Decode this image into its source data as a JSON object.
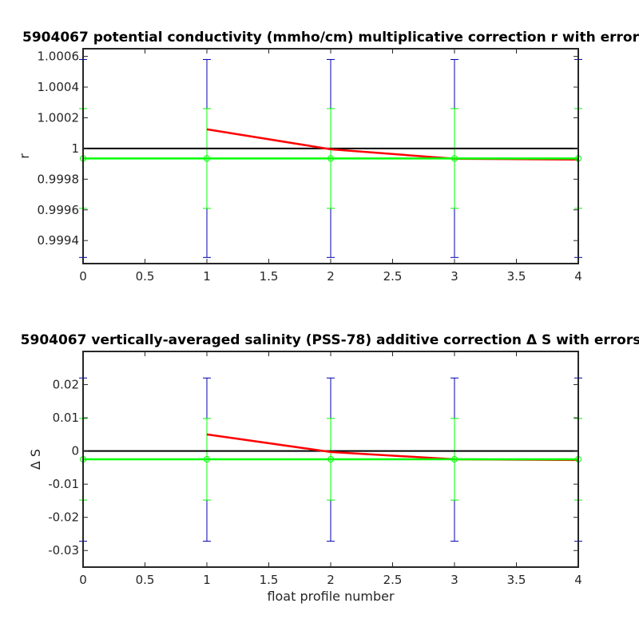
{
  "chart_data": [
    {
      "type": "line",
      "title": "5904067 potential conductivity (mmho/cm) multiplicative correction r with error",
      "xlabel": "",
      "ylabel": "r",
      "xlim": [
        0,
        4
      ],
      "ylim": [
        0.99925,
        1.00065
      ],
      "x_ticks": [
        "0",
        "0.5",
        "1",
        "1.5",
        "2",
        "2.5",
        "3",
        "3.5",
        "4"
      ],
      "y_ticks": [
        {
          "value": 0.9994,
          "label": "0.9994"
        },
        {
          "value": 0.9996,
          "label": "0.9996"
        },
        {
          "value": 0.9998,
          "label": "0.9998"
        },
        {
          "value": 1.0,
          "label": "1"
        },
        {
          "value": 1.0002,
          "label": "1.0002"
        },
        {
          "value": 1.0004,
          "label": "1.0004"
        },
        {
          "value": 1.0006,
          "label": "1.0006"
        }
      ],
      "reference": 1.0,
      "series": [
        {
          "color": "#ff0000",
          "kind": "line",
          "x": [
            1,
            2,
            3,
            4
          ],
          "y": [
            1.000125,
            0.999995,
            0.999933,
            0.999928
          ]
        },
        {
          "color": "#00ff00",
          "kind": "line-markers",
          "x": [
            0,
            1,
            2,
            3,
            4
          ],
          "y": [
            0.999935,
            0.999935,
            0.999935,
            0.999935,
            0.999935
          ]
        }
      ],
      "errorbars_outer": {
        "color": "#0000b4",
        "x": [
          0,
          1,
          2,
          3,
          4
        ],
        "low": 0.99929,
        "high": 1.00058
      },
      "errorbars_inner": {
        "color": "#00ff00",
        "x": [
          0,
          1,
          2,
          3,
          4
        ],
        "low": 0.99961,
        "high": 1.00026
      }
    },
    {
      "type": "line",
      "title": "5904067 vertically-averaged salinity (PSS-78) additive correction Δ S with errors",
      "xlabel": "float profile number",
      "ylabel": "Δ S",
      "xlim": [
        0,
        4
      ],
      "ylim": [
        -0.035,
        0.03
      ],
      "x_ticks": [
        "0",
        "0.5",
        "1",
        "1.5",
        "2",
        "2.5",
        "3",
        "3.5",
        "4"
      ],
      "y_ticks": [
        {
          "value": -0.03,
          "label": "-0.03"
        },
        {
          "value": -0.02,
          "label": "-0.02"
        },
        {
          "value": -0.01,
          "label": "-0.01"
        },
        {
          "value": 0,
          "label": "0"
        },
        {
          "value": 0.01,
          "label": "0.01"
        },
        {
          "value": 0.02,
          "label": "0.02"
        }
      ],
      "reference": 0,
      "series": [
        {
          "color": "#ff0000",
          "kind": "line",
          "x": [
            1,
            2,
            3,
            4
          ],
          "y": [
            0.005,
            -0.0003,
            -0.0025,
            -0.0027
          ]
        },
        {
          "color": "#00ff00",
          "kind": "line-markers",
          "x": [
            0,
            1,
            2,
            3,
            4
          ],
          "y": [
            -0.0025,
            -0.0025,
            -0.0025,
            -0.0025,
            -0.0025
          ]
        }
      ],
      "errorbars_outer": {
        "color": "#0000b4",
        "x": [
          0,
          1,
          2,
          3,
          4
        ],
        "low": -0.0272,
        "high": 0.022
      },
      "errorbars_inner": {
        "color": "#00ff00",
        "x": [
          0,
          1,
          2,
          3,
          4
        ],
        "low": -0.0148,
        "high": 0.0098
      }
    }
  ]
}
